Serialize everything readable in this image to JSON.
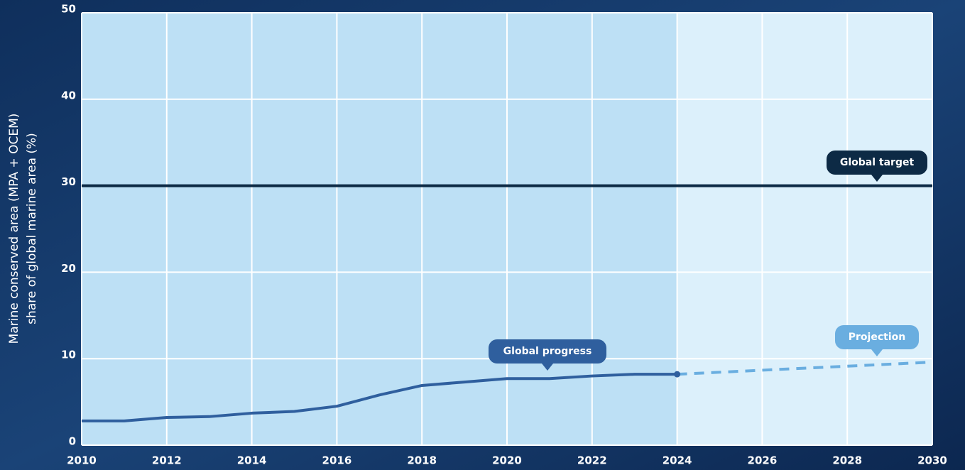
{
  "chart_data": {
    "type": "line",
    "y_label": [
      "Marine conserved area (MPA + OCEM)",
      "share of global marine area (%)"
    ],
    "xlim": [
      2010,
      2030
    ],
    "xticks": [
      2010,
      2012,
      2014,
      2016,
      2018,
      2020,
      2022,
      2024,
      2026,
      2028,
      2030
    ],
    "ylim": [
      0,
      50
    ],
    "yticks": [
      0,
      10,
      20,
      30,
      40,
      50
    ],
    "grid": true,
    "series": [
      {
        "name": "Global progress",
        "color": "#2f5f9e",
        "x": [
          2010,
          2011,
          2012,
          2013,
          2014,
          2015,
          2016,
          2017,
          2018,
          2019,
          2020,
          2021,
          2022,
          2023,
          2024
        ],
        "values": [
          2.8,
          2.8,
          3.2,
          3.3,
          3.7,
          3.9,
          4.5,
          5.8,
          6.9,
          7.3,
          7.7,
          7.7,
          8.0,
          8.2,
          8.2
        ]
      },
      {
        "name": "Projection",
        "color": "#6aaee0",
        "dashed": true,
        "x": [
          2024,
          2030
        ],
        "values": [
          8.2,
          9.6
        ]
      }
    ],
    "target": {
      "name": "Global target",
      "value": 30,
      "color": "#0d2a45"
    }
  }
}
